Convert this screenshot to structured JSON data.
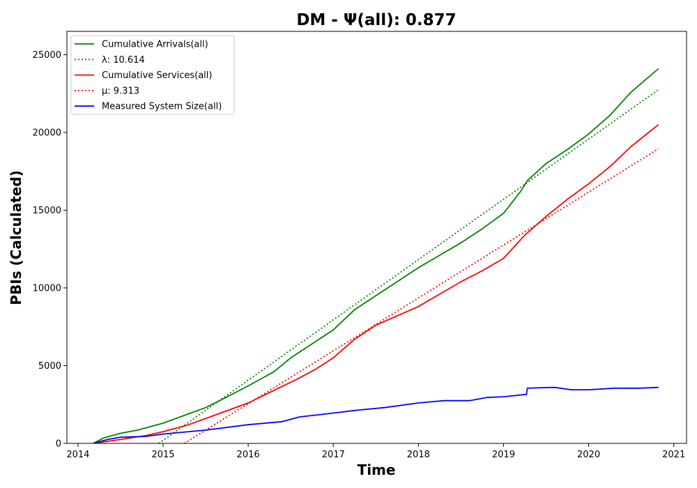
{
  "chart_data": {
    "type": "line",
    "title": "DM -  Ψ(all): 0.877",
    "xlabel": "Time",
    "ylabel": "PBIs (Calculated)",
    "xlim": [
      2013.87,
      2021.15
    ],
    "ylim": [
      0,
      26500
    ],
    "xticks": [
      2014,
      2015,
      2016,
      2017,
      2018,
      2019,
      2020,
      2021
    ],
    "yticks": [
      0,
      5000,
      10000,
      15000,
      20000,
      25000
    ],
    "grid": false,
    "legend": "top-left",
    "series": [
      {
        "name": "Cumulative Arrivals(all)",
        "color": "#008000",
        "style": "solid",
        "x": [
          2014.18,
          2014.3,
          2014.5,
          2014.7,
          2015.0,
          2015.3,
          2015.5,
          2015.7,
          2016.0,
          2016.3,
          2016.5,
          2016.75,
          2017.0,
          2017.25,
          2017.5,
          2017.75,
          2018.0,
          2018.25,
          2018.5,
          2018.75,
          2019.0,
          2019.2,
          2019.28,
          2019.5,
          2019.75,
          2020.0,
          2020.25,
          2020.5,
          2020.82
        ],
        "y": [
          0,
          350,
          650,
          850,
          1300,
          1900,
          2300,
          2850,
          3700,
          4600,
          5500,
          6400,
          7300,
          8600,
          9500,
          10400,
          11300,
          12100,
          12900,
          13800,
          14800,
          16200,
          16900,
          18000,
          18900,
          19900,
          21100,
          22600,
          24100
        ]
      },
      {
        "name": "λ: 10.614",
        "color": "#008000",
        "style": "dotted",
        "x": [
          2014.95,
          2020.82
        ],
        "y": [
          0,
          22750
        ]
      },
      {
        "name": "Cumulative Services(all)",
        "color": "#ff0000",
        "style": "solid",
        "x": [
          2014.18,
          2014.5,
          2014.8,
          2015.0,
          2015.3,
          2015.6,
          2015.8,
          2016.0,
          2016.3,
          2016.6,
          2016.8,
          2017.0,
          2017.25,
          2017.5,
          2017.75,
          2018.0,
          2018.25,
          2018.5,
          2018.75,
          2019.0,
          2019.25,
          2019.5,
          2019.75,
          2020.0,
          2020.25,
          2020.5,
          2020.82
        ],
        "y": [
          0,
          250,
          500,
          750,
          1200,
          1800,
          2200,
          2600,
          3400,
          4200,
          4800,
          5500,
          6700,
          7600,
          8200,
          8800,
          9600,
          10400,
          11100,
          11900,
          13400,
          14600,
          15700,
          16700,
          17800,
          19100,
          20500
        ]
      },
      {
        "name": "μ: 9.313",
        "color": "#ff0000",
        "style": "dotted",
        "x": [
          2015.25,
          2020.82
        ],
        "y": [
          0,
          18950
        ]
      },
      {
        "name": "Measured System Size(all)",
        "color": "#0000ff",
        "style": "solid",
        "x": [
          2014.18,
          2014.35,
          2014.5,
          2014.8,
          2015.0,
          2015.5,
          2016.0,
          2016.4,
          2016.6,
          2017.0,
          2017.3,
          2017.6,
          2018.0,
          2018.3,
          2018.6,
          2018.8,
          2019.0,
          2019.27,
          2019.28,
          2019.6,
          2019.8,
          2020.0,
          2020.3,
          2020.6,
          2020.82
        ],
        "y": [
          0,
          250,
          400,
          450,
          600,
          850,
          1200,
          1400,
          1700,
          1950,
          2150,
          2300,
          2600,
          2750,
          2750,
          2950,
          3000,
          3150,
          3550,
          3600,
          3450,
          3450,
          3550,
          3550,
          3600
        ]
      }
    ]
  }
}
